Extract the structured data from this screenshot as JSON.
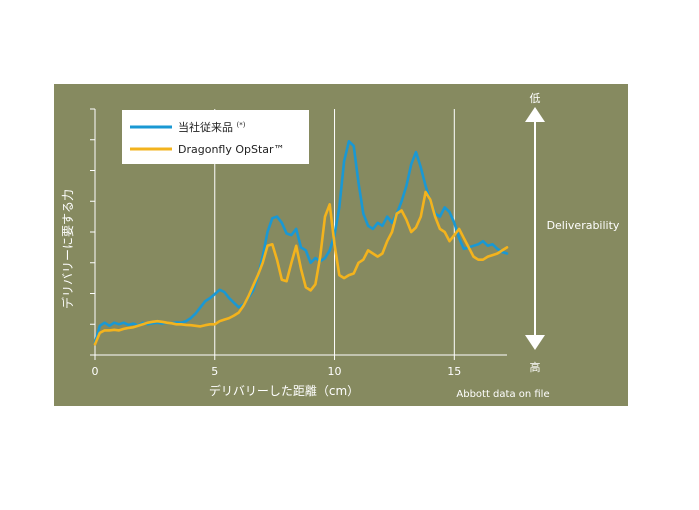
{
  "colors": {
    "background": "#868a60",
    "grid": "#ffffff",
    "axis": "#ffffff",
    "series_conventional": "#1a98d3",
    "series_dragonfly": "#f3b31d",
    "legend_bg": "#ffffff"
  },
  "chart_data": {
    "type": "line",
    "title": "",
    "xlabel": "デリバリーした距離（cm）",
    "ylabel": "デリバリーに要する力",
    "xlim": [
      0,
      17.2
    ],
    "ylim": [
      0,
      8
    ],
    "x_ticks": [
      0,
      5,
      10,
      15
    ],
    "x_tick_labels": [
      "0",
      "5",
      "10",
      "15"
    ],
    "y_tick_count": 9,
    "grid": "vertical at x = 5, 10, 15",
    "legend_placement": "top-left",
    "series": [
      {
        "name": "当社従来品",
        "name_suffix": "(*)",
        "color": "#1a98d3",
        "x": [
          0,
          0.2,
          0.4,
          0.6,
          0.8,
          1,
          1.2,
          1.4,
          1.6,
          1.8,
          2,
          2.2,
          2.4,
          2.6,
          2.8,
          3,
          3.2,
          3.4,
          3.6,
          3.8,
          4,
          4.2,
          4.4,
          4.6,
          4.8,
          5,
          5.2,
          5.4,
          5.6,
          5.8,
          6,
          6.2,
          6.4,
          6.6,
          6.8,
          7,
          7.2,
          7.4,
          7.6,
          7.8,
          8,
          8.2,
          8.4,
          8.6,
          8.8,
          9,
          9.2,
          9.4,
          9.6,
          9.8,
          10,
          10.2,
          10.4,
          10.6,
          10.8,
          11,
          11.2,
          11.4,
          11.6,
          11.8,
          12,
          12.2,
          12.4,
          12.6,
          12.8,
          13,
          13.2,
          13.4,
          13.6,
          13.8,
          14,
          14.2,
          14.4,
          14.6,
          14.8,
          15,
          15.2,
          15.4,
          15.6,
          15.8,
          16,
          16.2,
          16.4,
          16.6,
          16.8,
          17,
          17.2
        ],
        "y": [
          0.4,
          0.95,
          1.05,
          0.95,
          1.05,
          1.0,
          1.05,
          0.98,
          1.02,
          0.96,
          1.05,
          1.0,
          1.03,
          1.05,
          1.02,
          1.05,
          1.03,
          1.06,
          1.05,
          1.1,
          1.2,
          1.35,
          1.55,
          1.75,
          1.85,
          1.98,
          2.12,
          2.05,
          1.85,
          1.7,
          1.55,
          1.65,
          1.85,
          2.1,
          2.55,
          3.2,
          4.0,
          4.45,
          4.5,
          4.3,
          3.95,
          3.9,
          4.1,
          3.5,
          3.4,
          3.0,
          3.15,
          3.05,
          3.15,
          3.4,
          3.9,
          4.8,
          6.3,
          6.95,
          6.8,
          5.6,
          4.6,
          4.2,
          4.1,
          4.3,
          4.2,
          4.5,
          4.3,
          4.6,
          5.0,
          5.5,
          6.2,
          6.6,
          6.1,
          5.5,
          5.0,
          4.6,
          4.5,
          4.8,
          4.65,
          4.3,
          3.8,
          3.45,
          3.5,
          3.55,
          3.6,
          3.7,
          3.55,
          3.6,
          3.45,
          3.35,
          3.3
        ]
      },
      {
        "name": "Dragonfly OpStar™",
        "color": "#f3b31d",
        "x": [
          0,
          0.2,
          0.4,
          0.6,
          0.8,
          1,
          1.2,
          1.4,
          1.6,
          1.8,
          2,
          2.2,
          2.4,
          2.6,
          2.8,
          3,
          3.2,
          3.4,
          3.6,
          3.8,
          4,
          4.2,
          4.4,
          4.6,
          4.8,
          5,
          5.2,
          5.4,
          5.6,
          5.8,
          6,
          6.2,
          6.4,
          6.6,
          6.8,
          7,
          7.2,
          7.4,
          7.6,
          7.8,
          8,
          8.2,
          8.4,
          8.6,
          8.8,
          9,
          9.2,
          9.4,
          9.6,
          9.8,
          10,
          10.2,
          10.4,
          10.6,
          10.8,
          11,
          11.2,
          11.4,
          11.6,
          11.8,
          12,
          12.2,
          12.4,
          12.6,
          12.8,
          13,
          13.2,
          13.4,
          13.6,
          13.8,
          14,
          14.2,
          14.4,
          14.6,
          14.8,
          15,
          15.2,
          15.4,
          15.6,
          15.8,
          16,
          16.2,
          16.4,
          16.6,
          16.8,
          17,
          17.2
        ],
        "y": [
          0.35,
          0.72,
          0.8,
          0.8,
          0.82,
          0.8,
          0.85,
          0.88,
          0.9,
          0.95,
          1.0,
          1.05,
          1.08,
          1.1,
          1.08,
          1.05,
          1.03,
          1.0,
          1.0,
          0.98,
          0.97,
          0.95,
          0.93,
          0.97,
          1.0,
          1.0,
          1.1,
          1.15,
          1.2,
          1.28,
          1.38,
          1.6,
          1.9,
          2.25,
          2.6,
          3.0,
          3.55,
          3.6,
          3.1,
          2.45,
          2.4,
          3.0,
          3.55,
          2.8,
          2.2,
          2.1,
          2.3,
          3.2,
          4.5,
          4.9,
          3.6,
          2.6,
          2.5,
          2.6,
          2.65,
          3.0,
          3.1,
          3.4,
          3.3,
          3.2,
          3.3,
          3.7,
          4.0,
          4.6,
          4.7,
          4.4,
          4.0,
          4.15,
          4.5,
          5.3,
          5.05,
          4.5,
          4.1,
          4.0,
          3.7,
          3.9,
          4.1,
          3.8,
          3.5,
          3.2,
          3.1,
          3.1,
          3.2,
          3.25,
          3.3,
          3.4,
          3.5
        ]
      }
    ]
  },
  "side": {
    "top_label": "低",
    "middle_label": "Deliverability",
    "bottom_label": "高"
  },
  "footnote": "Abbott data on file"
}
